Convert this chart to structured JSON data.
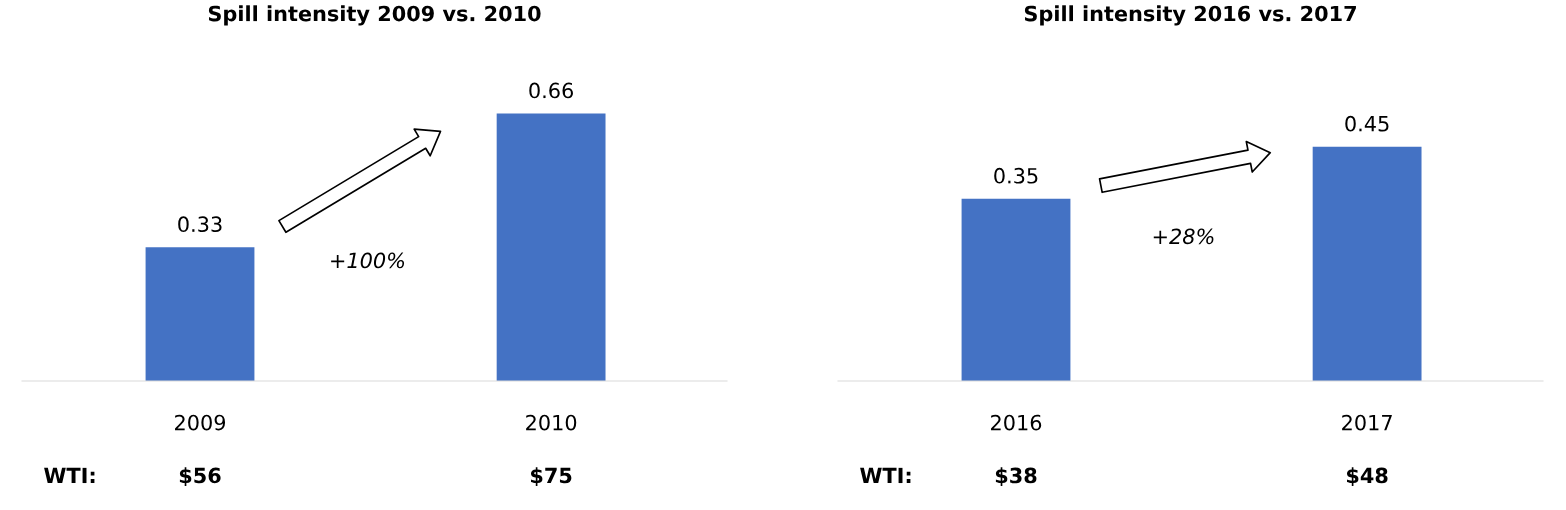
{
  "chart_data": [
    {
      "type": "bar",
      "title": "Spill intensity 2009 vs. 2010",
      "categories": [
        "2009",
        "2010"
      ],
      "values": [
        0.33,
        0.66
      ],
      "color": "#4472c4",
      "data_labels": true,
      "grid": false,
      "legend": false,
      "tick_labels": "x",
      "annotations": [
        "+100%",
        "WTI:",
        "$56",
        "$75"
      ]
    },
    {
      "type": "bar",
      "title": "Spill intensity 2016 vs. 2017",
      "categories": [
        "2016",
        "2017"
      ],
      "values": [
        0.35,
        0.45
      ],
      "color": "#4472c4",
      "data_labels": true,
      "grid": false,
      "legend": false,
      "tick_labels": "x",
      "annotations": [
        "+28%",
        "WTI:",
        "$38",
        "$48"
      ]
    }
  ]
}
